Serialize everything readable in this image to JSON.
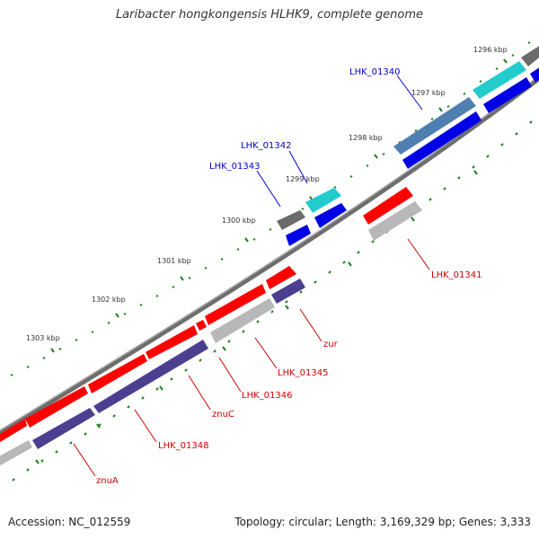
{
  "title": "Laribacter hongkongensis HLHK9, complete genome",
  "footer": {
    "accession": "Accession: NC_012559",
    "summary": "Topology: circular; Length: 3,169,329 bp; Genes: 3,333"
  },
  "colors": {
    "backbone": "#7a7a7a",
    "tick_minor": "#1a7f1a",
    "red_feature": "#ff0000",
    "navy_feature": "#4b3f8f",
    "gray_feature": "#b8b8b8",
    "blue_feature": "#0000e6",
    "steel_feature": "#4f7fb0",
    "cyan_feature": "#22cccc",
    "dark_gray_feature": "#6a6a6a",
    "label_blue": "#0000cc",
    "label_red": "#cc0000"
  },
  "kbp_labels": [
    "1296 kbp",
    "1297 kbp",
    "1298 kbp",
    "1299 kbp",
    "1300 kbp",
    "1301 kbp",
    "1302 kbp",
    "1303 kbp"
  ],
  "gene_labels": [
    {
      "text": "LHK_01340",
      "color": "blue"
    },
    {
      "text": "LHK_01342",
      "color": "blue"
    },
    {
      "text": "LHK_01343",
      "color": "blue"
    },
    {
      "text": "LHK_01341",
      "color": "red"
    },
    {
      "text": "zur",
      "color": "red"
    },
    {
      "text": "LHK_01345",
      "color": "red"
    },
    {
      "text": "LHK_01346",
      "color": "red"
    },
    {
      "text": "znuC",
      "color": "red"
    },
    {
      "text": "LHK_01348",
      "color": "red"
    },
    {
      "text": "znuA",
      "color": "red"
    }
  ]
}
